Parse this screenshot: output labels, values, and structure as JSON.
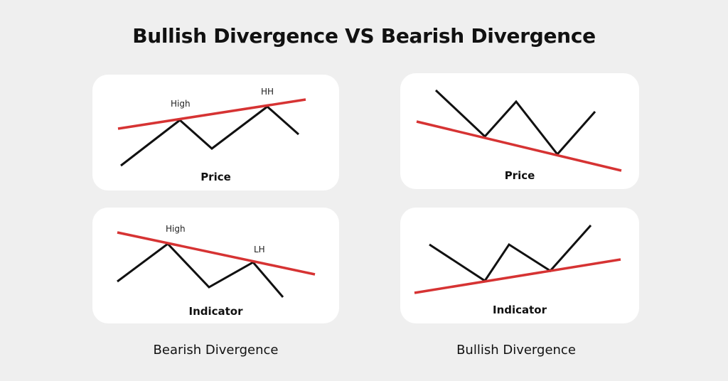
{
  "title": "Bullish Divergence VS Bearish Divergence",
  "colors": {
    "background": "#efefef",
    "card": "#ffffff",
    "price_line": "#111111",
    "trend_line": "#d63333"
  },
  "panels": {
    "bearish_price": {
      "label": "Price",
      "point_labels": [
        "High",
        "HH"
      ]
    },
    "bearish_indicator": {
      "label": "Indicator",
      "point_labels": [
        "High",
        "LH"
      ]
    },
    "bullish_price": {
      "label": "Price"
    },
    "bullish_indicator": {
      "label": "Indicator"
    }
  },
  "captions": {
    "left": "Bearish Divergence",
    "right": "Bullish Divergence"
  }
}
